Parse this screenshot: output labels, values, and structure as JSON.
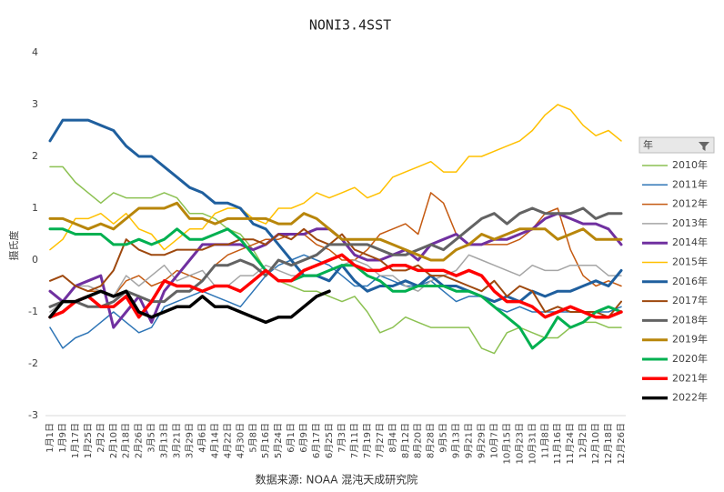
{
  "chart_data": {
    "type": "line",
    "title": "NONI3.4SST",
    "y_label": "摄氏度",
    "source": "数据来源: NOAA 混沌天成研究院",
    "legend_title": "年",
    "legend_position": "right",
    "grid": false,
    "categories": [
      "1月1日",
      "1月9日",
      "1月17日",
      "1月25日",
      "2月2日",
      "2月10日",
      "2月18日",
      "2月26日",
      "3月5日",
      "3月13日",
      "3月21日",
      "3月29日",
      "4月6日",
      "4月14日",
      "4月22日",
      "4月30日",
      "5月8日",
      "5月16日",
      "5月24日",
      "6月1日",
      "6月9日",
      "6月17日",
      "6月25日",
      "7月3日",
      "7月11日",
      "7月19日",
      "7月27日",
      "8月4日",
      "8月12日",
      "8月20日",
      "8月28日",
      "9月5日",
      "9月13日",
      "9月21日",
      "9月29日",
      "10月7日",
      "10月15日",
      "10月23日",
      "10月31日",
      "11月8日",
      "11月16日",
      "11月24日",
      "12月2日",
      "12月10日",
      "12月18日",
      "12月26日"
    ],
    "ylim": [
      -3,
      4
    ],
    "yticks": [
      -3,
      -2,
      -1,
      0,
      1,
      2,
      3,
      4
    ],
    "series": [
      {
        "name": "2010年",
        "color": "#8cc152",
        "line_width": 1.5,
        "values": [
          1.8,
          1.8,
          1.5,
          1.3,
          1.1,
          1.3,
          1.2,
          1.2,
          1.2,
          1.3,
          1.2,
          0.9,
          0.9,
          0.8,
          0.6,
          0.5,
          0.2,
          -0.2,
          -0.4,
          -0.5,
          -0.6,
          -0.6,
          -0.7,
          -0.8,
          -0.7,
          -1.0,
          -1.4,
          -1.3,
          -1.1,
          -1.2,
          -1.3,
          -1.3,
          -1.3,
          -1.3,
          -1.7,
          -1.8,
          -1.4,
          -1.3,
          -1.4,
          -1.5,
          -1.5,
          -1.3,
          -1.2,
          -1.2,
          -1.3,
          -1.3
        ]
      },
      {
        "name": "2011年",
        "color": "#2e75b6",
        "line_width": 1.5,
        "values": [
          -1.3,
          -1.7,
          -1.5,
          -1.4,
          -1.2,
          -1.0,
          -1.2,
          -1.4,
          -1.3,
          -0.9,
          -0.8,
          -0.7,
          -0.6,
          -0.7,
          -0.8,
          -0.9,
          -0.6,
          -0.3,
          -0.1,
          0.0,
          0.1,
          0.0,
          -0.1,
          -0.3,
          -0.5,
          -0.5,
          -0.3,
          -0.4,
          -0.5,
          -0.5,
          -0.4,
          -0.6,
          -0.8,
          -0.7,
          -0.7,
          -0.9,
          -1.0,
          -0.9,
          -1.0,
          -1.0,
          -1.0,
          -1.0,
          -1.0,
          -1.0,
          -1.0,
          -0.9
        ]
      },
      {
        "name": "2012年",
        "color": "#c55a11",
        "line_width": 1.5,
        "values": [
          -0.4,
          -0.3,
          -0.5,
          -0.6,
          -0.6,
          -0.7,
          -0.4,
          -0.3,
          -0.5,
          -0.4,
          -0.2,
          -0.3,
          -0.4,
          -0.1,
          0.1,
          0.2,
          0.3,
          0.4,
          0.4,
          0.5,
          0.5,
          0.3,
          0.2,
          0.0,
          0.0,
          0.2,
          0.5,
          0.6,
          0.7,
          0.5,
          1.3,
          1.1,
          0.5,
          0.3,
          0.3,
          0.3,
          0.3,
          0.4,
          0.6,
          0.9,
          1.0,
          0.2,
          -0.3,
          -0.5,
          -0.4,
          -0.5
        ]
      },
      {
        "name": "2013年",
        "color": "#a5a5a5",
        "line_width": 1.5,
        "values": [
          -1.0,
          -0.8,
          -0.5,
          -0.5,
          -0.6,
          -0.7,
          -0.3,
          -0.5,
          -0.3,
          -0.1,
          -0.4,
          -0.3,
          -0.2,
          -0.5,
          -0.5,
          -0.3,
          -0.3,
          -0.1,
          -0.2,
          -0.3,
          -0.3,
          -0.3,
          -0.2,
          -0.1,
          0.0,
          -0.1,
          -0.3,
          -0.3,
          -0.5,
          -0.6,
          -0.4,
          -0.3,
          -0.2,
          0.1,
          0.0,
          -0.1,
          -0.2,
          -0.3,
          -0.1,
          -0.2,
          -0.2,
          -0.1,
          -0.1,
          -0.1,
          -0.3,
          -0.3
        ]
      },
      {
        "name": "2014年",
        "color": "#7030a0",
        "line_width": 3,
        "values": [
          -0.6,
          -0.8,
          -0.5,
          -0.4,
          -0.3,
          -1.3,
          -1.0,
          -0.7,
          -1.2,
          -0.6,
          -0.3,
          0.0,
          0.3,
          0.3,
          0.3,
          0.3,
          0.2,
          0.3,
          0.5,
          0.5,
          0.5,
          0.6,
          0.6,
          0.4,
          0.1,
          0.0,
          0.0,
          0.1,
          0.2,
          0.0,
          0.3,
          0.4,
          0.5,
          0.3,
          0.3,
          0.4,
          0.4,
          0.5,
          0.6,
          0.8,
          0.9,
          0.8,
          0.7,
          0.7,
          0.6,
          0.3
        ]
      },
      {
        "name": "2015年",
        "color": "#ffc000",
        "line_width": 1.5,
        "values": [
          0.2,
          0.4,
          0.8,
          0.8,
          0.9,
          0.7,
          0.9,
          0.6,
          0.5,
          0.2,
          0.4,
          0.6,
          0.6,
          0.9,
          1.0,
          1.0,
          0.8,
          0.7,
          1.0,
          1.0,
          1.1,
          1.3,
          1.2,
          1.3,
          1.4,
          1.2,
          1.3,
          1.6,
          1.7,
          1.8,
          1.9,
          1.7,
          1.7,
          2.0,
          2.0,
          2.1,
          2.2,
          2.3,
          2.5,
          2.8,
          3.0,
          2.9,
          2.6,
          2.4,
          2.5,
          2.3
        ]
      },
      {
        "name": "2016年",
        "color": "#1f5f9e",
        "line_width": 3,
        "values": [
          2.3,
          2.7,
          2.7,
          2.7,
          2.6,
          2.5,
          2.2,
          2.0,
          2.0,
          1.8,
          1.6,
          1.4,
          1.3,
          1.1,
          1.1,
          1.0,
          0.7,
          0.6,
          0.3,
          0.0,
          -0.3,
          -0.3,
          -0.4,
          -0.1,
          -0.4,
          -0.6,
          -0.5,
          -0.5,
          -0.4,
          -0.5,
          -0.3,
          -0.5,
          -0.5,
          -0.6,
          -0.7,
          -0.8,
          -0.7,
          -0.8,
          -0.6,
          -0.7,
          -0.6,
          -0.6,
          -0.5,
          -0.4,
          -0.5,
          -0.2
        ]
      },
      {
        "name": "2017年",
        "color": "#9e480e",
        "line_width": 2,
        "values": [
          -0.4,
          -0.3,
          -0.5,
          -0.6,
          -0.5,
          -0.2,
          0.4,
          0.2,
          0.1,
          0.1,
          0.2,
          0.2,
          0.2,
          0.3,
          0.3,
          0.4,
          0.4,
          0.3,
          0.5,
          0.4,
          0.6,
          0.4,
          0.3,
          0.5,
          0.2,
          0.1,
          0.0,
          -0.2,
          -0.2,
          -0.1,
          -0.3,
          -0.3,
          -0.4,
          -0.5,
          -0.6,
          -0.4,
          -0.7,
          -0.5,
          -0.6,
          -1.0,
          -0.9,
          -1.0,
          -1.0,
          -1.0,
          -1.1,
          -0.8
        ]
      },
      {
        "name": "2018年",
        "color": "#636363",
        "line_width": 3,
        "values": [
          -0.9,
          -0.8,
          -0.8,
          -0.9,
          -0.9,
          -0.8,
          -0.6,
          -0.7,
          -0.8,
          -0.8,
          -0.6,
          -0.6,
          -0.4,
          -0.1,
          -0.1,
          0.0,
          -0.1,
          -0.3,
          0.0,
          -0.1,
          0.0,
          0.1,
          0.3,
          0.3,
          0.3,
          0.3,
          0.2,
          0.1,
          0.1,
          0.2,
          0.3,
          0.2,
          0.4,
          0.6,
          0.8,
          0.9,
          0.7,
          0.9,
          1.0,
          0.9,
          0.9,
          0.9,
          1.0,
          0.8,
          0.9,
          0.9
        ]
      },
      {
        "name": "2019年",
        "color": "#b8860b",
        "line_width": 3,
        "values": [
          0.8,
          0.8,
          0.7,
          0.6,
          0.7,
          0.6,
          0.8,
          1.0,
          1.0,
          1.0,
          1.1,
          0.8,
          0.8,
          0.7,
          0.8,
          0.8,
          0.8,
          0.8,
          0.7,
          0.7,
          0.9,
          0.8,
          0.6,
          0.4,
          0.4,
          0.4,
          0.4,
          0.3,
          0.2,
          0.1,
          0.0,
          0.0,
          0.2,
          0.3,
          0.5,
          0.4,
          0.5,
          0.6,
          0.6,
          0.6,
          0.4,
          0.5,
          0.6,
          0.4,
          0.4,
          0.4
        ]
      },
      {
        "name": "2020年",
        "color": "#00b050",
        "line_width": 3,
        "values": [
          0.6,
          0.6,
          0.5,
          0.5,
          0.5,
          0.3,
          0.3,
          0.4,
          0.3,
          0.4,
          0.6,
          0.4,
          0.4,
          0.5,
          0.6,
          0.4,
          0.1,
          -0.2,
          -0.4,
          -0.4,
          -0.3,
          -0.3,
          -0.2,
          -0.1,
          -0.1,
          -0.3,
          -0.4,
          -0.6,
          -0.6,
          -0.5,
          -0.5,
          -0.5,
          -0.6,
          -0.6,
          -0.7,
          -0.9,
          -1.1,
          -1.3,
          -1.7,
          -1.5,
          -1.1,
          -1.3,
          -1.2,
          -1.0,
          -0.9,
          -1.0
        ]
      },
      {
        "name": "2021年",
        "color": "#ff0000",
        "line_width": 3.5,
        "values": [
          -1.1,
          -1.0,
          -0.8,
          -0.7,
          -0.9,
          -0.9,
          -0.7,
          -1.1,
          -0.8,
          -0.4,
          -0.5,
          -0.5,
          -0.6,
          -0.5,
          -0.5,
          -0.6,
          -0.4,
          -0.2,
          -0.4,
          -0.4,
          -0.2,
          -0.1,
          0.0,
          0.1,
          -0.1,
          -0.2,
          -0.2,
          -0.1,
          -0.1,
          -0.2,
          -0.2,
          -0.2,
          -0.3,
          -0.2,
          -0.3,
          -0.6,
          -0.8,
          -0.8,
          -0.9,
          -1.1,
          -1.0,
          -0.9,
          -1.0,
          -1.1,
          -1.1,
          -1.0
        ]
      },
      {
        "name": "2022年",
        "color": "#000000",
        "line_width": 3.5,
        "values": [
          -1.1,
          -0.8,
          -0.8,
          -0.7,
          -0.6,
          -0.7,
          -0.6,
          -1.0,
          -1.1,
          -1.0,
          -0.9,
          -0.9,
          -0.7,
          -0.9,
          -0.9,
          -1.0,
          -1.1,
          -1.2,
          -1.1,
          -1.1,
          -0.9,
          -0.7,
          -0.6,
          null,
          null,
          null,
          null,
          null,
          null,
          null,
          null,
          null,
          null,
          null,
          null,
          null,
          null,
          null,
          null,
          null,
          null,
          null,
          null,
          null,
          null,
          null
        ]
      }
    ]
  }
}
